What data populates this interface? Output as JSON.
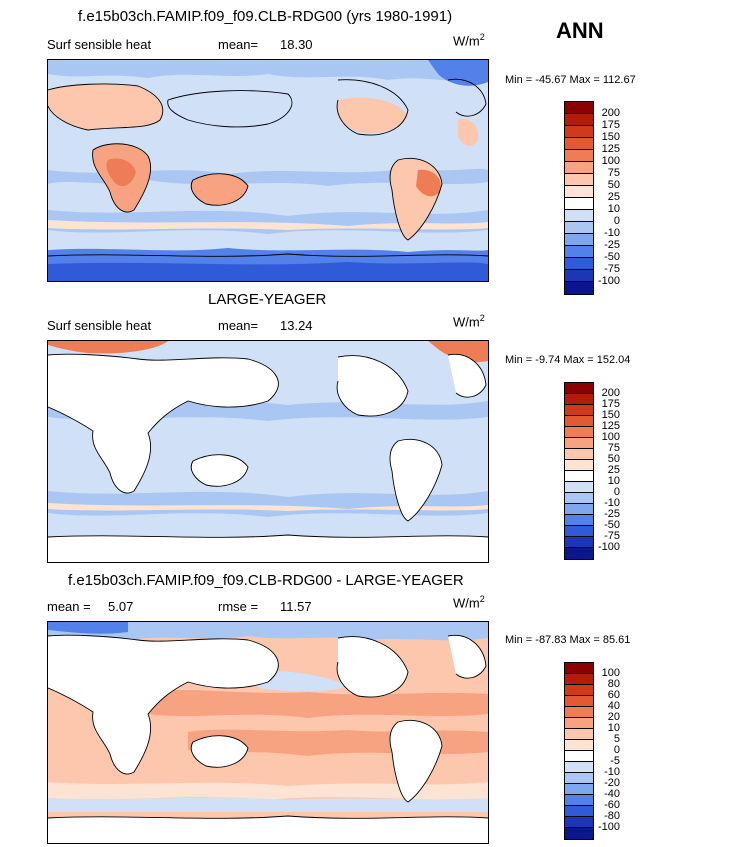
{
  "season_label": "ANN",
  "panels": [
    {
      "title": "f.e15b03ch.FAMIP.f09_f09.CLB-RDG00 (yrs 1980-1991)",
      "left_label": "Surf sensible heat",
      "stat_label": "mean=",
      "stat_value": "18.30",
      "unit_base": "W/m",
      "unit_exp": "2",
      "min_label": "Min =",
      "min_value": "-45.67",
      "max_label": "Max =",
      "max_value": "112.67",
      "colorbar": {
        "labels": [
          "200",
          "175",
          "150",
          "125",
          "100",
          "75",
          "50",
          "25",
          "10",
          "0",
          "-10",
          "-25",
          "-50",
          "-75",
          "-100"
        ],
        "colors": [
          "#8b0000",
          "#b31c0b",
          "#cf3a1a",
          "#e25a33",
          "#ee7d55",
          "#f7a382",
          "#fcc7ac",
          "#fde3d3",
          "#ffffff",
          "#cfe0f7",
          "#a9c7f2",
          "#7ea7ee",
          "#5281ea",
          "#2f5bd8",
          "#1c37b5",
          "#0c1590"
        ]
      }
    },
    {
      "title": "LARGE-YEAGER",
      "left_label": "Surf sensible heat",
      "stat_label": "mean=",
      "stat_value": "13.24",
      "unit_base": "W/m",
      "unit_exp": "2",
      "min_label": "Min =",
      "min_value": "-9.74",
      "max_label": "Max =",
      "max_value": "152.04",
      "colorbar": {
        "labels": [
          "200",
          "175",
          "150",
          "125",
          "100",
          "75",
          "50",
          "25",
          "10",
          "0",
          "-10",
          "-25",
          "-50",
          "-75",
          "-100"
        ],
        "colors": [
          "#8b0000",
          "#b31c0b",
          "#cf3a1a",
          "#e25a33",
          "#ee7d55",
          "#f7a382",
          "#fcc7ac",
          "#fde3d3",
          "#ffffff",
          "#cfe0f7",
          "#a9c7f2",
          "#7ea7ee",
          "#5281ea",
          "#2f5bd8",
          "#1c37b5",
          "#0c1590"
        ]
      }
    },
    {
      "title": "f.e15b03ch.FAMIP.f09_f09.CLB-RDG00 - LARGE-YEAGER",
      "left_label": "mean =",
      "left_value": "5.07",
      "stat_label": "rmse =",
      "stat_value": "11.57",
      "unit_base": "W/m",
      "unit_exp": "2",
      "min_label": "Min =",
      "min_value": "-87.83",
      "max_label": "Max =",
      "max_value": "85.61",
      "colorbar": {
        "labels": [
          "100",
          "80",
          "60",
          "40",
          "20",
          "10",
          "5",
          "0",
          "-5",
          "-10",
          "-20",
          "-40",
          "-60",
          "-80",
          "-100"
        ],
        "colors": [
          "#8b0000",
          "#b31c0b",
          "#cf3a1a",
          "#e25a33",
          "#ee7d55",
          "#f7a382",
          "#fcc7ac",
          "#fde3d3",
          "#ffffff",
          "#cfe0f7",
          "#a9c7f2",
          "#7ea7ee",
          "#5281ea",
          "#2f5bd8",
          "#1c37b5",
          "#0c1590"
        ]
      }
    }
  ]
}
